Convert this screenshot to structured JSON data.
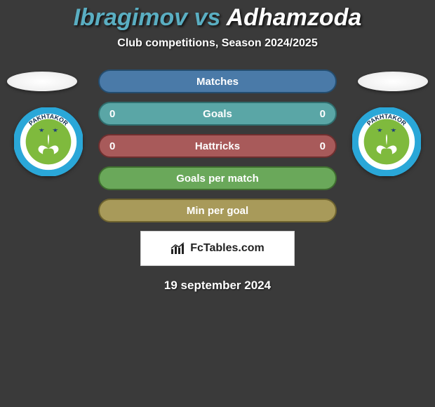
{
  "title": {
    "player1": "Ibragimov",
    "vs": "vs",
    "player2": "Adhamzoda",
    "color1": "#5aaec2",
    "color2": "#ffffff",
    "fontsize": 34
  },
  "subtitle": "Club competitions, Season 2024/2025",
  "rows": [
    {
      "label": "Matches",
      "left": "",
      "right": "",
      "style": "pill-blue"
    },
    {
      "label": "Goals",
      "left": "0",
      "right": "0",
      "style": "pill-teal"
    },
    {
      "label": "Hattricks",
      "left": "0",
      "right": "0",
      "style": "pill-red"
    },
    {
      "label": "Goals per match",
      "left": "",
      "right": "",
      "style": "pill-green"
    },
    {
      "label": "Min per goal",
      "left": "",
      "right": "",
      "style": "pill-gold"
    }
  ],
  "crest": {
    "top_text": "PAKHTAKOR",
    "bottom_text": "UZBEKISTAN TASHKENT",
    "ring_color": "#2aa7d8",
    "inner_color": "#7fba3d",
    "star_color": "#1c3d7a"
  },
  "badge": "FcTables.com",
  "date": "19 september 2024"
}
